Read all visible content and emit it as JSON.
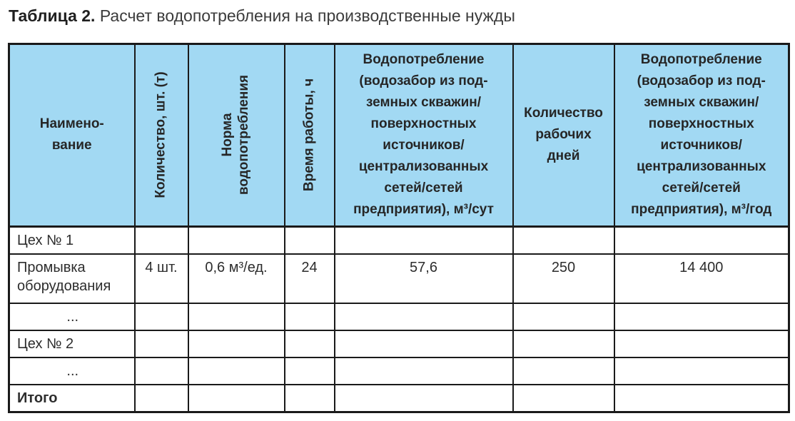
{
  "title": {
    "label": "Таблица 2.",
    "text": "Расчет водопотребления на производственные нужды"
  },
  "colors": {
    "header_bg": "#a2d9f3",
    "border": "#1a1a1a",
    "title_bold": "#1f1f1f",
    "body_text": "#2d2d2d"
  },
  "table": {
    "headers": [
      "Наимено-\nвание",
      "Количество, шт. (т)",
      "Норма\nводопотребления",
      "Время работы, ч",
      "Водопотребление\n(водозабор из под-\nземных скважин/\nповерхностных\nисточников/\nцентрализованных\nсетей/сетей\nпредприятия), м³/сут",
      "Количество\nрабочих\nдней",
      "Водопотребление\n(водозабор из под-\nземных скважин/\nповерхностных\nисточников/\nцентрализованных\nсетей/сетей\nпредприятия), м³/год"
    ],
    "rows": [
      {
        "cells": [
          "Цех № 1",
          "",
          "",
          "",
          "",
          "",
          ""
        ]
      },
      {
        "cells": [
          "Промывка оборудования",
          "4 шт.",
          "0,6 м³/ед.",
          "24",
          "57,6",
          "250",
          "14 400"
        ]
      },
      {
        "cells": [
          "...",
          "",
          "",
          "",
          "",
          "",
          ""
        ]
      },
      {
        "cells": [
          "Цех № 2",
          "",
          "",
          "",
          "",
          "",
          ""
        ]
      },
      {
        "cells": [
          "...",
          "",
          "",
          "",
          "",
          "",
          ""
        ]
      },
      {
        "cells": [
          "Итого",
          "",
          "",
          "",
          "",
          "",
          ""
        ]
      }
    ]
  }
}
